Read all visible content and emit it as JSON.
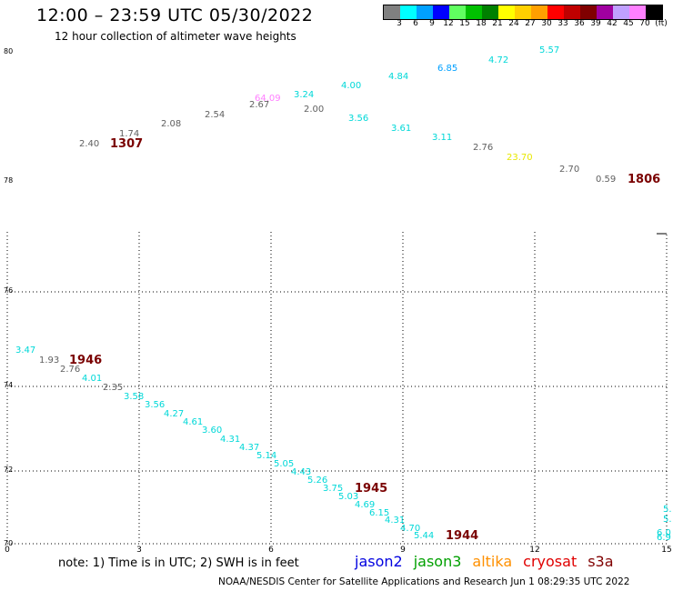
{
  "header": {
    "title": "12:00 – 23:59 UTC 05/30/2022",
    "subtitle": "12 hour collection of altimeter wave heights"
  },
  "colorbar": {
    "colors": [
      "#808080",
      "#00ffff",
      "#00a0ff",
      "#0000ff",
      "#60ff60",
      "#00c000",
      "#008000",
      "#ffff00",
      "#ffd000",
      "#ffa000",
      "#ff0000",
      "#c00000",
      "#800000",
      "#a000a0",
      "#c0a0ff",
      "#ff80ff",
      "#000000"
    ],
    "labels": [
      "3",
      "6",
      "9",
      "12",
      "15",
      "18",
      "21",
      "24",
      "27",
      "30",
      "33",
      "36",
      "39",
      "42",
      "45",
      "70",
      "(ft)"
    ]
  },
  "axes": {
    "lat_top": [
      "80",
      "78"
    ],
    "lat_bottom": [
      "76",
      "74",
      "72",
      "70"
    ],
    "lon": [
      "0",
      "3",
      "6",
      "9",
      "12",
      "15"
    ]
  },
  "swh_points": [
    {
      "text": "2.40",
      "color": "#606060"
    },
    {
      "text": "1.74",
      "color": "#606060"
    },
    {
      "text": "2.08",
      "color": "#606060"
    },
    {
      "text": "2.54",
      "color": "#606060"
    },
    {
      "text": "2.67",
      "color": "#606060"
    },
    {
      "text": "64.09",
      "color": "#ff80ff"
    },
    {
      "text": "3.24",
      "color": "#00d8d8"
    },
    {
      "text": "2.00",
      "color": "#606060"
    },
    {
      "text": "4.00",
      "color": "#00d8d8"
    },
    {
      "text": "3.56",
      "color": "#00d8d8"
    },
    {
      "text": "4.84",
      "color": "#00d8d8"
    },
    {
      "text": "3.61",
      "color": "#00d8d8"
    },
    {
      "text": "6.85",
      "color": "#00a0ff"
    },
    {
      "text": "3.11",
      "color": "#00d8d8"
    },
    {
      "text": "4.72",
      "color": "#00d8d8"
    },
    {
      "text": "2.76",
      "color": "#606060"
    },
    {
      "text": "5.57",
      "color": "#00d8d8"
    },
    {
      "text": "23.70",
      "color": "#e8e800"
    },
    {
      "text": "2.70",
      "color": "#606060"
    },
    {
      "text": "0.59",
      "color": "#606060"
    },
    {
      "text": "3.47",
      "color": "#00d8d8"
    },
    {
      "text": "1.93",
      "color": "#606060"
    },
    {
      "text": "2.76",
      "color": "#606060"
    },
    {
      "text": "4.01",
      "color": "#00d8d8"
    },
    {
      "text": "2.35",
      "color": "#606060"
    },
    {
      "text": "3.58",
      "color": "#00d8d8"
    },
    {
      "text": "3.56",
      "color": "#00d8d8"
    },
    {
      "text": "4.27",
      "color": "#00d8d8"
    },
    {
      "text": "4.61",
      "color": "#00d8d8"
    },
    {
      "text": "3.60",
      "color": "#00d8d8"
    },
    {
      "text": "4.31",
      "color": "#00d8d8"
    },
    {
      "text": "4.37",
      "color": "#00d8d8"
    },
    {
      "text": "5.14",
      "color": "#00d8d8"
    },
    {
      "text": "5.05",
      "color": "#00d8d8"
    },
    {
      "text": "4.43",
      "color": "#00d8d8"
    },
    {
      "text": "5.26",
      "color": "#00d8d8"
    },
    {
      "text": "3.75",
      "color": "#00d8d8"
    },
    {
      "text": "5.03",
      "color": "#00d8d8"
    },
    {
      "text": "4.69",
      "color": "#00d8d8"
    },
    {
      "text": "6.15",
      "color": "#00d8d8"
    },
    {
      "text": "4.31",
      "color": "#00d8d8"
    },
    {
      "text": "4.70",
      "color": "#00d8d8"
    },
    {
      "text": "5.44",
      "color": "#00d8d8"
    },
    {
      "text": "5.",
      "color": "#00d8d8"
    },
    {
      "text": "5.",
      "color": "#00d8d8"
    },
    {
      "text": "6.0",
      "color": "#00d8d8"
    },
    {
      "text": "6.9",
      "color": "#00d8d8"
    }
  ],
  "pass_times": [
    "1307",
    "1806",
    "1946",
    "1945",
    "1944"
  ],
  "note": "note:  1) Time is in UTC;  2) SWH is in feet",
  "satellites": [
    {
      "name": "jason2",
      "color": "#0000e0"
    },
    {
      "name": "jason3",
      "color": "#00a000"
    },
    {
      "name": "altika",
      "color": "#ff9000"
    },
    {
      "name": "cryosat",
      "color": "#e00000"
    },
    {
      "name": "s3a",
      "color": "#800000"
    }
  ],
  "footer": "NOAA/NESDIS Center for Satellite Applications and Research     Jun  1 08:29:35 UTC 2022"
}
